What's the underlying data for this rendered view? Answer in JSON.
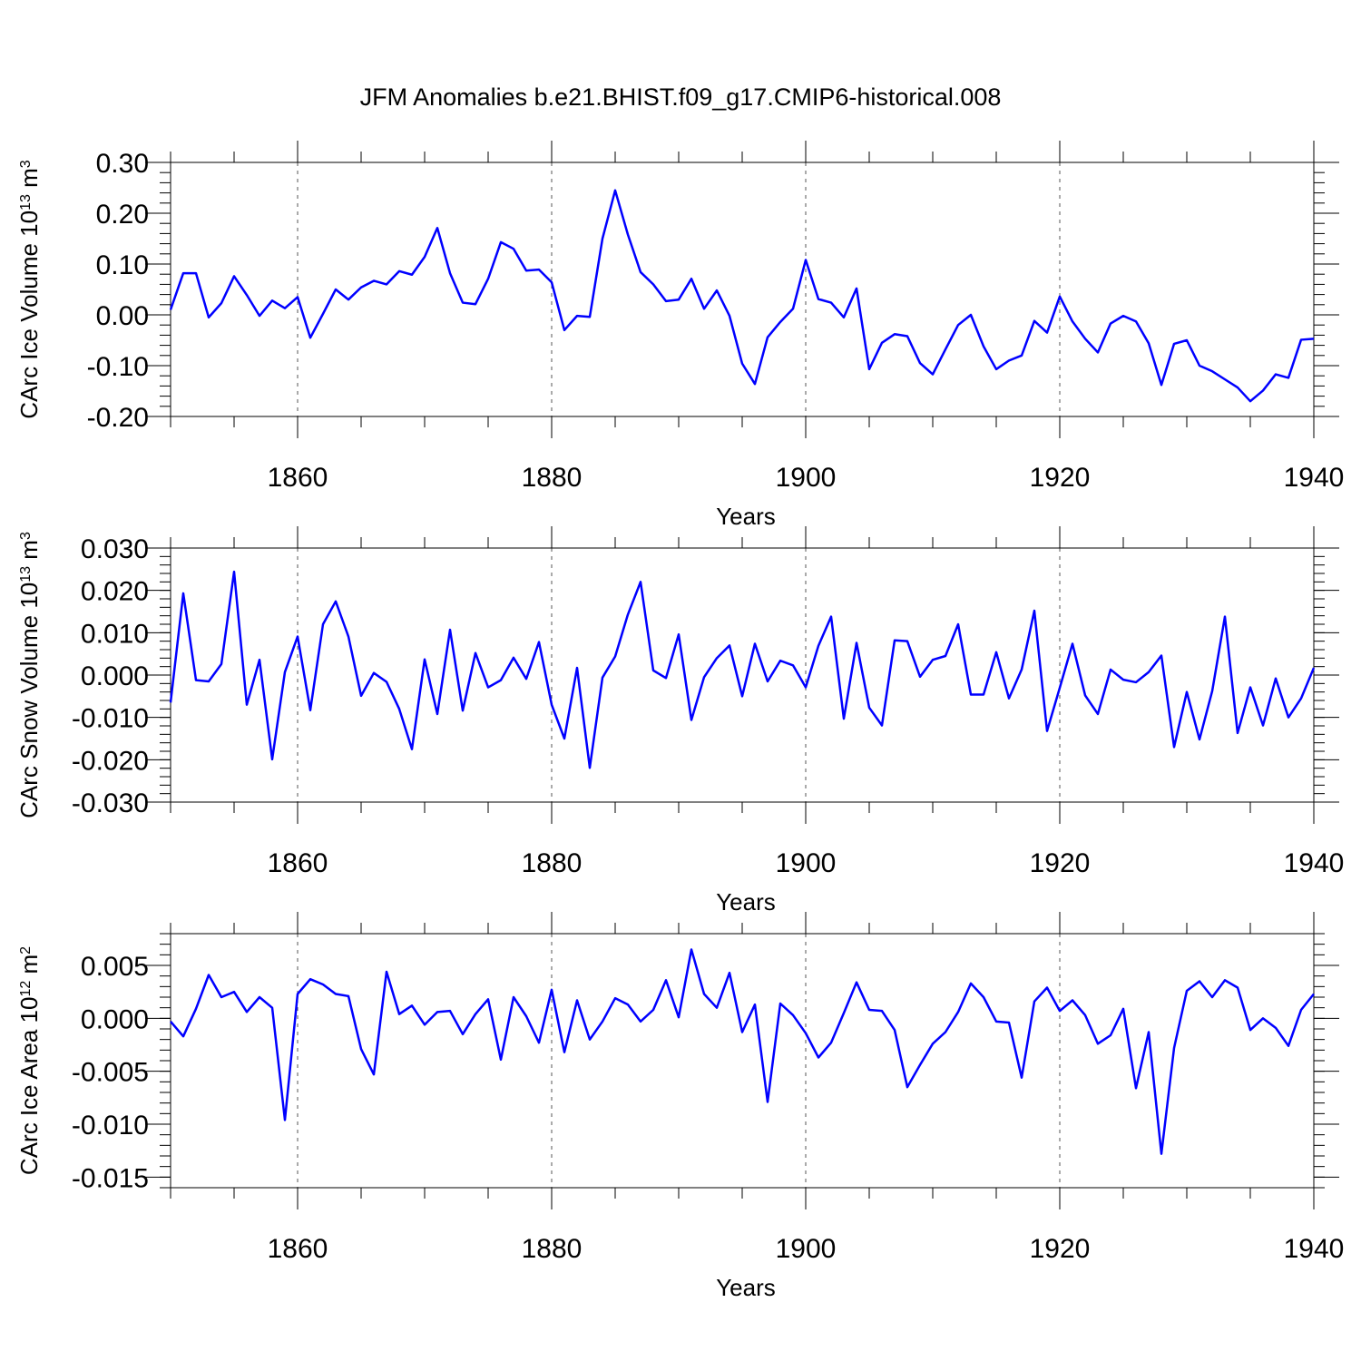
{
  "chart_data": {
    "type": "line",
    "title": "JFM Anomalies b.e21.BHIST.f09_g17.CMIP6-historical.008",
    "color": "#0000ff",
    "x": [
      1850,
      1851,
      1852,
      1853,
      1854,
      1855,
      1856,
      1857,
      1858,
      1859,
      1860,
      1861,
      1862,
      1863,
      1864,
      1865,
      1866,
      1867,
      1868,
      1869,
      1870,
      1871,
      1872,
      1873,
      1874,
      1875,
      1876,
      1877,
      1878,
      1879,
      1880,
      1881,
      1882,
      1883,
      1884,
      1885,
      1886,
      1887,
      1888,
      1889,
      1890,
      1891,
      1892,
      1893,
      1894,
      1895,
      1896,
      1897,
      1898,
      1899,
      1900,
      1901,
      1902,
      1903,
      1904,
      1905,
      1906,
      1907,
      1908,
      1909,
      1910,
      1911,
      1912,
      1913,
      1914,
      1915,
      1916,
      1917,
      1918,
      1919,
      1920,
      1921,
      1922,
      1923,
      1924,
      1925,
      1926,
      1927,
      1928,
      1929,
      1930,
      1931,
      1932,
      1933,
      1934,
      1935,
      1936,
      1937,
      1938,
      1939,
      1940
    ],
    "panels": [
      {
        "id": "ice-volume",
        "ylabel_main": "CArc Ice Volume 10",
        "ylabel_exp": "13",
        "ylabel_unit": " m",
        "ylabel_unit_exp": "3",
        "xlabel": "Years",
        "xlim": [
          1850,
          1940
        ],
        "ylim": [
          -0.2,
          0.3
        ],
        "xticks": [
          1860,
          1880,
          1900,
          1920,
          1940
        ],
        "yticks": [
          0.3,
          0.2,
          0.1,
          0.0,
          -0.1,
          -0.2
        ],
        "ytick_labels": [
          "0.30",
          "0.20",
          "0.10",
          "0.00",
          "-0.10",
          "-0.20"
        ],
        "values": [
          0.01,
          0.082,
          0.082,
          -0.005,
          0.023,
          0.076,
          0.039,
          -0.002,
          0.028,
          0.013,
          0.035,
          -0.045,
          0.002,
          0.05,
          0.03,
          0.054,
          0.067,
          0.06,
          0.086,
          0.079,
          0.114,
          0.171,
          0.082,
          0.024,
          0.021,
          0.071,
          0.143,
          0.13,
          0.087,
          0.089,
          0.064,
          -0.03,
          -0.002,
          -0.004,
          0.15,
          0.245,
          0.158,
          0.084,
          0.06,
          0.027,
          0.03,
          0.071,
          0.012,
          0.048,
          -0.002,
          -0.096,
          -0.136,
          -0.044,
          -0.014,
          0.012,
          0.108,
          0.031,
          0.024,
          -0.005,
          0.052,
          -0.107,
          -0.055,
          -0.038,
          -0.042,
          -0.095,
          -0.117,
          -0.068,
          -0.02,
          0.0,
          -0.062,
          -0.107,
          -0.09,
          -0.08,
          -0.012,
          -0.035,
          0.036,
          -0.013,
          -0.047,
          -0.074,
          -0.017,
          -0.002,
          -0.013,
          -0.056,
          -0.138,
          -0.057,
          -0.05,
          -0.1,
          -0.111,
          -0.127,
          -0.143,
          -0.17,
          -0.149,
          -0.117,
          -0.124,
          -0.049,
          -0.047
        ]
      },
      {
        "id": "snow-volume",
        "ylabel_main": "CArc Snow Volume 10",
        "ylabel_exp": "13",
        "ylabel_unit": " m",
        "ylabel_unit_exp": "3",
        "xlabel": "Years",
        "xlim": [
          1850,
          1940
        ],
        "ylim": [
          -0.03,
          0.03
        ],
        "xticks": [
          1860,
          1880,
          1900,
          1920,
          1940
        ],
        "yticks": [
          0.03,
          0.02,
          0.01,
          0.0,
          -0.01,
          -0.02,
          -0.03
        ],
        "ytick_labels": [
          "0.030",
          "0.020",
          "0.010",
          "0.000",
          "-0.010",
          "-0.020",
          "-0.030"
        ],
        "values": [
          -0.0065,
          0.0193,
          -0.0012,
          -0.0015,
          0.0026,
          0.0244,
          -0.007,
          0.0036,
          -0.0199,
          0.0007,
          0.0091,
          -0.0083,
          0.012,
          0.0174,
          0.0091,
          -0.0049,
          0.0005,
          -0.0016,
          -0.008,
          -0.0175,
          0.0037,
          -0.0092,
          0.0107,
          -0.0084,
          0.0052,
          -0.0029,
          -0.0012,
          0.0041,
          -0.0009,
          0.0078,
          -0.007,
          -0.015,
          0.0017,
          -0.0219,
          -0.0006,
          0.0044,
          0.0143,
          0.022,
          0.0011,
          -0.0007,
          0.0096,
          -0.0106,
          -0.0005,
          0.004,
          0.007,
          -0.005,
          0.0074,
          -0.0015,
          0.0034,
          0.0023,
          -0.0029,
          0.0069,
          0.0138,
          -0.0103,
          0.0076,
          -0.0077,
          -0.0119,
          0.0082,
          0.008,
          -0.0004,
          0.0036,
          0.0045,
          0.012,
          -0.0046,
          -0.0046,
          0.0054,
          -0.0055,
          0.0013,
          0.0152,
          -0.0132,
          -0.003,
          0.0074,
          -0.0048,
          -0.0092,
          0.0013,
          -0.0011,
          -0.0017,
          0.0007,
          0.0046,
          -0.017,
          -0.004,
          -0.0152,
          -0.0038,
          0.0138,
          -0.0137,
          -0.0029,
          -0.0119,
          -0.0008,
          -0.01,
          -0.0055,
          0.0017
        ]
      },
      {
        "id": "ice-area",
        "ylabel_main": "CArc Ice Area 10",
        "ylabel_exp": "12",
        "ylabel_unit": " m",
        "ylabel_unit_exp": "2",
        "xlabel": "Years",
        "xlim": [
          1850,
          1940
        ],
        "ylim": [
          -0.016,
          0.008
        ],
        "xticks": [
          1860,
          1880,
          1900,
          1920,
          1940
        ],
        "yticks": [
          0.005,
          0.0,
          -0.005,
          -0.01,
          -0.015
        ],
        "ytick_labels": [
          "0.005",
          "0.000",
          "-0.005",
          "-0.010",
          "-0.015"
        ],
        "values": [
          -0.0003,
          -0.0017,
          0.0009,
          0.0041,
          0.002,
          0.0025,
          0.0006,
          0.002,
          0.001,
          -0.0096,
          0.0023,
          0.0037,
          0.0032,
          0.0023,
          0.0021,
          -0.0029,
          -0.0053,
          0.0044,
          0.0004,
          0.0012,
          -0.0006,
          0.0006,
          0.0007,
          -0.0015,
          0.0004,
          0.0018,
          -0.0039,
          0.002,
          0.0002,
          -0.0023,
          0.0027,
          -0.0032,
          0.0017,
          -0.002,
          -0.0003,
          0.0019,
          0.0013,
          -0.0003,
          0.0008,
          0.0036,
          0.0001,
          0.0065,
          0.0023,
          0.001,
          0.0043,
          -0.0013,
          0.0013,
          -0.0079,
          0.0014,
          0.0003,
          -0.0014,
          -0.0037,
          -0.0023,
          0.0005,
          0.0034,
          0.0008,
          0.0007,
          -0.0011,
          -0.0065,
          -0.0044,
          -0.0024,
          -0.0013,
          0.0006,
          0.0033,
          0.002,
          -0.0003,
          -0.0004,
          -0.0056,
          0.0016,
          0.0029,
          0.0007,
          0.0017,
          0.0003,
          -0.0024,
          -0.0016,
          0.0009,
          -0.0066,
          -0.0013,
          -0.0128,
          -0.0028,
          0.0026,
          0.0035,
          0.002,
          0.0036,
          0.0029,
          -0.0011,
          0.0,
          -0.0009,
          -0.0026,
          0.0008,
          0.0023
        ]
      }
    ]
  }
}
